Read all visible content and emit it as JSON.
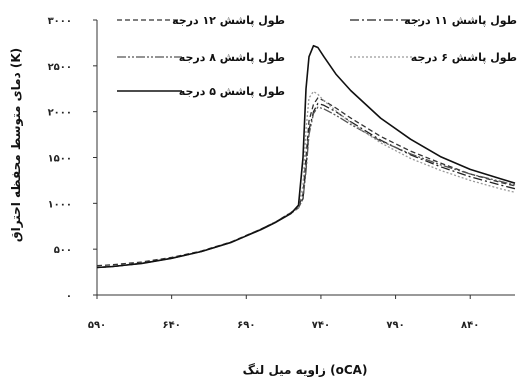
{
  "chart_data": {
    "type": "line",
    "title": "",
    "xlabel": "زاویه میل لنگ (oCA)",
    "ylabel": "دمای متوسط محفظه احتراق (K)",
    "xlim": [
      590,
      870
    ],
    "ylim": [
      0,
      3000
    ],
    "x_ticks": [
      590,
      640,
      690,
      740,
      790,
      840
    ],
    "x_tick_labels": [
      "۵۹۰",
      "۶۴۰",
      "۶۹۰",
      "۷۴۰",
      "۷۹۰",
      "۸۴۰"
    ],
    "y_ticks": [
      0,
      500,
      1000,
      1500,
      2000,
      2500,
      3000
    ],
    "y_tick_labels": [
      "۰",
      "۵۰۰",
      "۱۰۰۰",
      "۱۵۰۰",
      "۲۰۰۰",
      "۲۵۰۰",
      "۳۰۰۰"
    ],
    "grid": false,
    "legend_position": "top",
    "series": [
      {
        "name": "طول پاشش ۱۲ درجه",
        "color": "#333333",
        "dash": "5,3",
        "x": [
          590,
          600,
          620,
          640,
          660,
          680,
          700,
          710,
          720,
          725,
          728,
          730,
          732,
          735,
          738,
          742,
          750,
          760,
          780,
          800,
          820,
          840,
          860,
          870
        ],
        "y": [
          320,
          330,
          360,
          410,
          480,
          580,
          720,
          800,
          900,
          960,
          1100,
          1500,
          1900,
          2080,
          2150,
          2120,
          2040,
          1930,
          1730,
          1570,
          1440,
          1320,
          1230,
          1190
        ]
      },
      {
        "name": "طول پاشش ۱۱ درجه",
        "color": "#222222",
        "dash": "9,3,2,3",
        "x": [
          590,
          600,
          620,
          640,
          660,
          680,
          700,
          710,
          720,
          725,
          728,
          730,
          732,
          735,
          738,
          742,
          750,
          760,
          780,
          800,
          820,
          840,
          860,
          870
        ],
        "y": [
          300,
          310,
          345,
          400,
          475,
          575,
          720,
          800,
          900,
          960,
          1050,
          1400,
          1800,
          2000,
          2090,
          2070,
          2000,
          1890,
          1690,
          1530,
          1400,
          1290,
          1200,
          1160
        ]
      },
      {
        "name": "طول پاشش ۸ درجه",
        "color": "#555555",
        "dash": "9,2,2,2,2,2",
        "x": [
          590,
          600,
          620,
          640,
          660,
          680,
          700,
          710,
          720,
          725,
          728,
          730,
          732,
          735,
          738,
          742,
          750,
          760,
          780,
          800,
          820,
          840,
          860,
          870
        ],
        "y": [
          300,
          310,
          345,
          400,
          475,
          575,
          715,
          795,
          890,
          950,
          1050,
          1350,
          1750,
          1980,
          2050,
          2030,
          1960,
          1860,
          1680,
          1540,
          1420,
          1320,
          1240,
          1200
        ]
      },
      {
        "name": "طول پاشش ۶ درجه",
        "color": "#9a9a9a",
        "dash": "2,2",
        "x": [
          590,
          600,
          620,
          640,
          660,
          680,
          700,
          710,
          720,
          725,
          728,
          730,
          732,
          735,
          738,
          742,
          750,
          760,
          780,
          800,
          820,
          840,
          860,
          870
        ],
        "y": [
          300,
          310,
          345,
          400,
          475,
          575,
          715,
          795,
          890,
          960,
          1200,
          1800,
          2150,
          2220,
          2190,
          2120,
          2010,
          1880,
          1660,
          1490,
          1360,
          1250,
          1160,
          1120
        ]
      },
      {
        "name": "طول پاشش ۵ درجه",
        "color": "#111111",
        "dash": "",
        "x": [
          590,
          600,
          620,
          640,
          660,
          680,
          700,
          710,
          720,
          725,
          728,
          730,
          732,
          735,
          738,
          742,
          750,
          760,
          780,
          800,
          820,
          840,
          860,
          870
        ],
        "y": [
          300,
          310,
          345,
          400,
          475,
          575,
          715,
          795,
          890,
          980,
          1500,
          2250,
          2600,
          2720,
          2700,
          2600,
          2410,
          2230,
          1930,
          1700,
          1510,
          1370,
          1270,
          1220
        ]
      }
    ]
  }
}
